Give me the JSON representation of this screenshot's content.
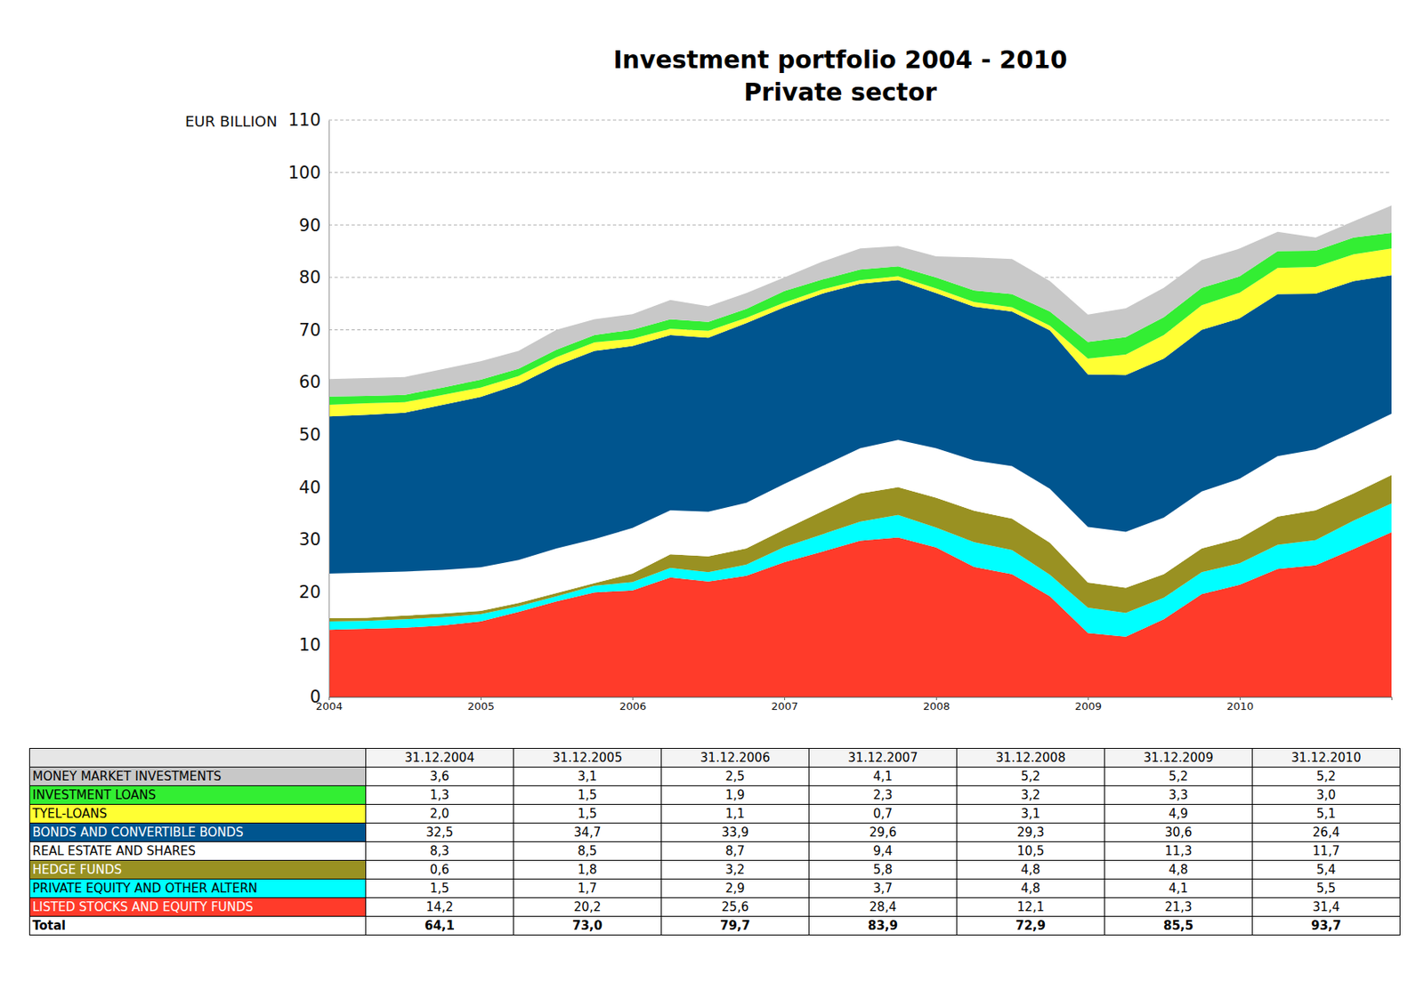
{
  "chart_data": {
    "type": "area",
    "stacked": true,
    "title": "Investment portfolio 2004 - 2010",
    "subtitle": "Private sector",
    "y_label": "EUR BILLION",
    "x": [
      2004,
      2004.25,
      2004.5,
      2004.75,
      2005,
      2005.25,
      2005.5,
      2005.75,
      2006,
      2006.25,
      2006.5,
      2006.75,
      2007,
      2007.25,
      2007.5,
      2007.75,
      2008,
      2008.25,
      2008.5,
      2008.75,
      2009,
      2009.25,
      2009.5,
      2009.75,
      2010,
      2010.25,
      2010.5,
      2010.75,
      2011
    ],
    "xlim": [
      2004,
      2011
    ],
    "xticks": [
      2004,
      2005,
      2006,
      2007,
      2008,
      2009,
      2010
    ],
    "ylim": [
      0,
      110
    ],
    "yticks": [
      0,
      10,
      20,
      30,
      40,
      50,
      60,
      70,
      80,
      90,
      100,
      110
    ],
    "grid": true,
    "series": [
      {
        "name": "MONEY MARKET INVESTMENTS",
        "color": "#c8c8c8",
        "values": [
          3.3,
          3.4,
          3.4,
          3.5,
          3.5,
          3.4,
          3.8,
          3.0,
          3.0,
          3.7,
          3.0,
          3.0,
          2.6,
          3.4,
          4.0,
          3.9,
          4.0,
          6.3,
          6.7,
          5.8,
          5.2,
          5.5,
          5.6,
          5.3,
          5.3,
          3.7,
          2.5,
          3.1,
          5.2
        ]
      },
      {
        "name": "INVESTMENT LOANS",
        "color": "#33ee33",
        "values": [
          1.6,
          1.4,
          1.4,
          1.4,
          1.5,
          1.4,
          1.4,
          1.4,
          1.7,
          1.8,
          1.7,
          1.7,
          2.2,
          1.9,
          2.0,
          1.9,
          2.1,
          2.2,
          2.5,
          2.7,
          3.2,
          3.3,
          3.4,
          3.3,
          3.1,
          3.2,
          3.1,
          3.2,
          3.0
        ]
      },
      {
        "name": "TYEL-LOANS",
        "color": "#ffff33",
        "values": [
          2.2,
          2.2,
          2.0,
          1.9,
          1.8,
          1.6,
          1.6,
          1.6,
          1.4,
          1.2,
          1.3,
          1.0,
          0.9,
          0.8,
          0.7,
          0.7,
          0.9,
          0.9,
          0.8,
          0.9,
          3.0,
          3.9,
          4.5,
          4.7,
          4.9,
          5.0,
          5.1,
          5.1,
          5.1
        ]
      },
      {
        "name": "BONDS AND CONVERTIBLE BONDS",
        "color": "#00558f",
        "values": [
          30.0,
          30.1,
          30.3,
          31.5,
          32.5,
          33.5,
          34.9,
          35.9,
          34.7,
          33.4,
          33.2,
          34.3,
          33.7,
          32.9,
          31.4,
          30.5,
          29.6,
          29.3,
          29.5,
          30.2,
          29.1,
          29.9,
          30.3,
          30.8,
          30.6,
          30.9,
          29.7,
          28.8,
          26.4
        ]
      },
      {
        "name": "REAL ESTATE AND SHARES",
        "color": "#ffffff",
        "values": [
          8.5,
          8.6,
          8.4,
          8.3,
          8.3,
          8.2,
          8.5,
          8.4,
          8.7,
          8.4,
          8.5,
          8.7,
          8.7,
          8.6,
          8.6,
          9.0,
          9.4,
          9.6,
          10.0,
          10.3,
          10.6,
          10.7,
          10.8,
          10.9,
          11.4,
          11.5,
          11.6,
          11.7,
          11.7
        ]
      },
      {
        "name": "HEDGE FUNDS",
        "color": "#999122",
        "values": [
          0.6,
          0.6,
          0.7,
          0.7,
          0.6,
          0.6,
          0.6,
          0.5,
          1.6,
          2.6,
          3.0,
          3.1,
          3.3,
          4.4,
          5.4,
          5.3,
          5.7,
          6.0,
          6.0,
          6.1,
          4.8,
          4.8,
          4.5,
          4.5,
          4.7,
          5.4,
          5.7,
          5.2,
          5.4
        ]
      },
      {
        "name": "PRIVATE EQUITY AND OTHER ALTERN",
        "color": "#00ffff",
        "values": [
          1.6,
          1.5,
          1.6,
          1.6,
          1.4,
          1.1,
          1.0,
          1.3,
          1.6,
          1.8,
          1.8,
          2.1,
          2.9,
          3.3,
          3.6,
          4.3,
          3.8,
          4.7,
          4.6,
          4.1,
          4.8,
          4.5,
          4.1,
          4.2,
          4.1,
          4.6,
          4.8,
          5.4,
          5.5
        ]
      },
      {
        "name": "LISTED STOCKS AND EQUITY FUNDS",
        "color": "#ff3b2a",
        "values": [
          12.8,
          13.0,
          13.2,
          13.6,
          14.4,
          16.2,
          18.2,
          19.9,
          20.3,
          22.8,
          22.0,
          23.1,
          25.7,
          27.7,
          29.8,
          30.4,
          28.5,
          24.8,
          23.4,
          19.2,
          12.2,
          11.5,
          14.8,
          19.6,
          21.4,
          24.4,
          25.1,
          28.2,
          31.4
        ]
      }
    ]
  },
  "table": {
    "columns": [
      "31.12.2004",
      "31.12.2005",
      "31.12.2006",
      "31.12.2007",
      "31.12.2008",
      "31.12.2009",
      "31.12.2010"
    ],
    "rows": [
      [
        "3,6",
        "3,1",
        "2,5",
        "4,1",
        "5,2",
        "5,2",
        "5,2"
      ],
      [
        "1,3",
        "1,5",
        "1,9",
        "2,3",
        "3,2",
        "3,3",
        "3,0"
      ],
      [
        "2,0",
        "1,5",
        "1,1",
        "0,7",
        "3,1",
        "4,9",
        "5,1"
      ],
      [
        "32,5",
        "34,7",
        "33,9",
        "29,6",
        "29,3",
        "30,6",
        "26,4"
      ],
      [
        "8,3",
        "8,5",
        "8,7",
        "9,4",
        "10,5",
        "11,3",
        "11,7"
      ],
      [
        "0,6",
        "1,8",
        "3,2",
        "5,8",
        "4,8",
        "4,8",
        "5,4"
      ],
      [
        "1,5",
        "1,7",
        "2,9",
        "3,7",
        "4,8",
        "4,1",
        "5,5"
      ],
      [
        "14,2",
        "20,2",
        "25,6",
        "28,4",
        "12,1",
        "21,3",
        "31,4"
      ]
    ],
    "total_label": "Total",
    "totals": [
      "64,1",
      "73,0",
      "79,7",
      "83,9",
      "72,9",
      "85,5",
      "93,7"
    ]
  }
}
